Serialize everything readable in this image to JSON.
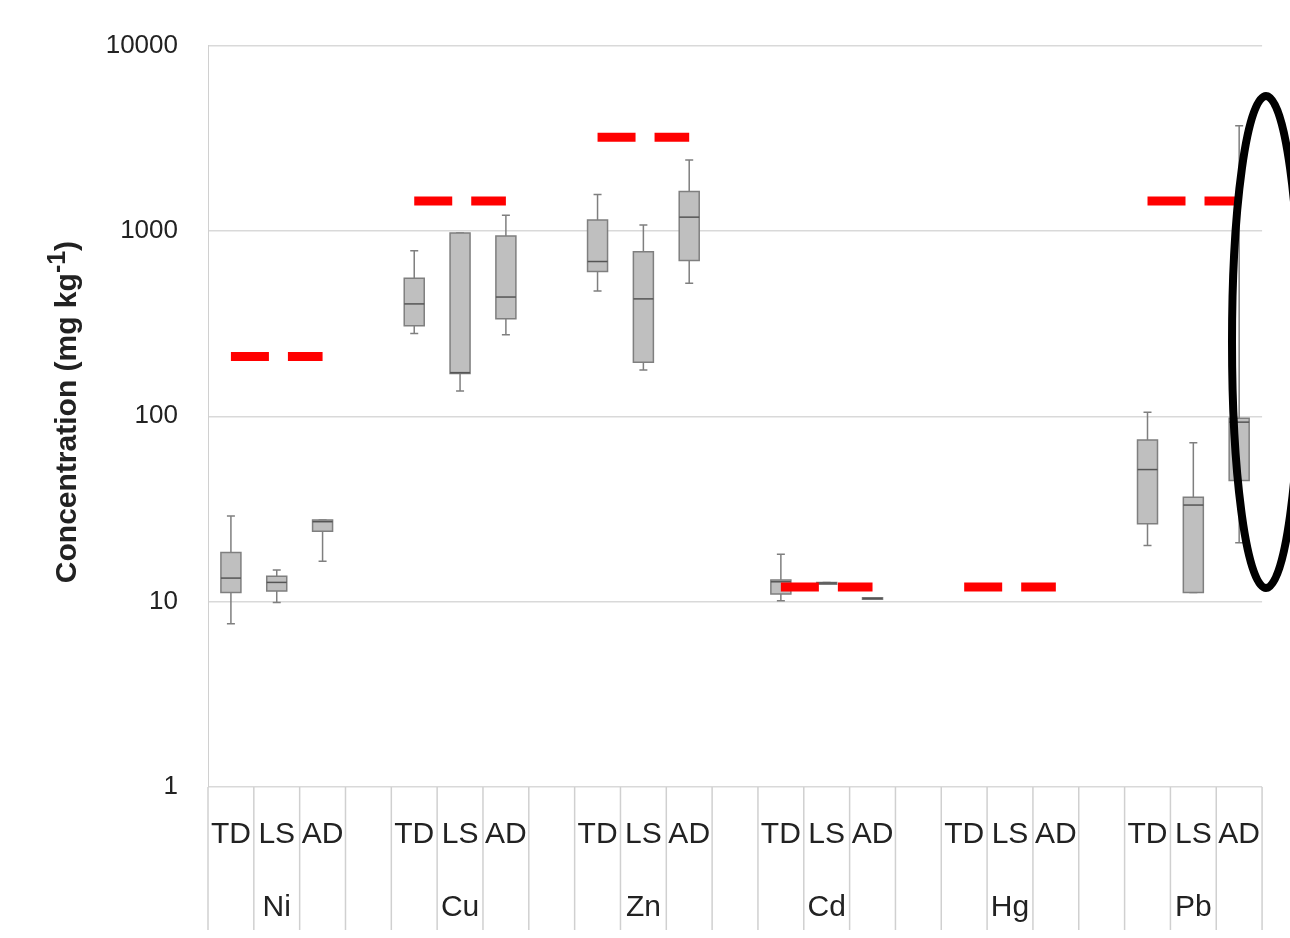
{
  "chart_data": {
    "type": "box",
    "ylabel": "Concentration (mg kg$^{-1}$)",
    "categories": [
      "TD",
      "LS",
      "AD",
      null,
      "TD",
      "LS",
      "AD",
      null,
      "TD",
      "LS",
      "AD",
      null,
      "TD",
      "LS",
      "AD",
      null,
      "TD",
      "LS",
      "AD",
      null,
      "TD",
      "LS",
      "AD"
    ],
    "annotations": [
      "Ni",
      "Cu",
      "Zn",
      "Cd",
      "Hg",
      "Pb"
    ],
    "color": "#bfbfbf",
    "boxes": [
      {
        "low": 7.6,
        "q1": 11.2,
        "median": 13.4,
        "q3": 18.4,
        "high": 29
      },
      {
        "low": 9.9,
        "q1": 11.4,
        "median": 12.7,
        "q3": 13.7,
        "high": 14.8
      },
      {
        "low": 16.5,
        "q1": 24,
        "median": 27,
        "q3": 27.6,
        "high": 27.6
      },
      null,
      {
        "low": 280,
        "q1": 308,
        "median": 404,
        "q3": 556,
        "high": 783
      },
      {
        "low": 137,
        "q1": 170,
        "median": 172,
        "q3": 976,
        "high": 976
      },
      {
        "low": 275,
        "q1": 336,
        "median": 440,
        "q3": 940,
        "high": 1217
      },
      null,
      {
        "low": 474,
        "q1": 605,
        "median": 684,
        "q3": 1144,
        "high": 1573
      },
      {
        "low": 178,
        "q1": 196,
        "median": 430,
        "q3": 773,
        "high": 1076
      },
      {
        "low": 522,
        "q1": 693,
        "median": 1187,
        "q3": 1632,
        "high": 2415
      },
      null,
      {
        "low": 10.1,
        "q1": 11,
        "median": 12.8,
        "q3": 13.1,
        "high": 18
      },
      {
        "low": 12.4,
        "q1": 12.4,
        "median": 12.6,
        "q3": 12.7,
        "high": 12.7
      },
      {
        "low": 10.3,
        "q1": 10.3,
        "median": 10.4,
        "q3": 10.5,
        "high": 10.5
      },
      null,
      null,
      null,
      null,
      null,
      {
        "low": 20.1,
        "q1": 26.3,
        "median": 51.6,
        "q3": 74.5,
        "high": 105
      },
      {
        "low": 11.2,
        "q1": 11.2,
        "median": 33.2,
        "q3": 36.6,
        "high": 72
      },
      {
        "low": 20.8,
        "q1": 45.1,
        "median": 93,
        "q3": 97.5,
        "high": 3700
      }
    ],
    "series": [
      {
        "type": "line",
        "color": "#ff0000",
        "line_style": "dashed",
        "values": [
          210,
          210,
          210,
          null,
          1450,
          1450,
          1450,
          null,
          3200,
          3200,
          3200,
          null,
          12,
          12,
          12,
          null,
          12,
          12,
          12,
          null,
          1450,
          1450,
          1450
        ]
      }
    ],
    "ylim": [
      1,
      10000
    ],
    "yticks": [
      1,
      10,
      100,
      1000,
      10000
    ],
    "log": "y",
    "grid": "y"
  }
}
